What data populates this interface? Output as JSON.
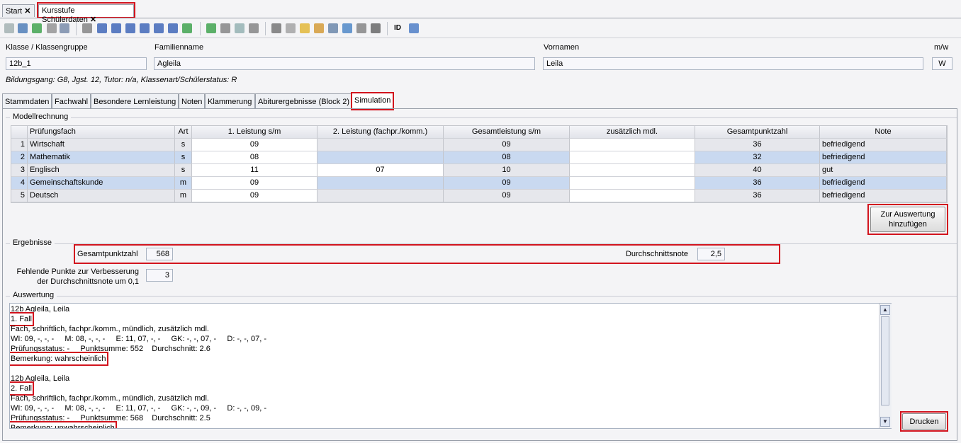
{
  "tabs": [
    "Start",
    "Kursstufe Schülerdaten"
  ],
  "toolbar": {
    "id_button": "ID"
  },
  "header": {
    "klasse": {
      "label": "Klasse / Klassengruppe",
      "value": "12b_1"
    },
    "familienname": {
      "label": "Familienname",
      "value": "Agleila"
    },
    "vornamen": {
      "label": "Vornamen",
      "value": "Leila"
    },
    "geschlecht": {
      "label": "m/w",
      "value": "W"
    },
    "info": "Bildungsgang: G8, Jgst. 12, Tutor: n/a, Klassenart/Schülerstatus: R"
  },
  "subtabs": [
    "Stammdaten",
    "Fachwahl",
    "Besondere Lernleistung",
    "Noten",
    "Klammerung",
    "Abiturergebnisse (Block 2)",
    "Simulation"
  ],
  "modellrechnung": {
    "title": "Modellrechnung",
    "columns": [
      null,
      "Prüfungsfach",
      "Art",
      "1. Leistung s/m",
      "2. Leistung (fachpr./komm.)",
      "Gesamtleistung s/m",
      "zusätzlich mdl.",
      "Gesamtpunktzahl",
      "Note"
    ],
    "rows": [
      [
        "1",
        "Wirtschaft",
        "s",
        "09",
        null,
        "09",
        null,
        "36",
        "befriedigend"
      ],
      [
        "2",
        "Mathematik",
        "s",
        "08",
        null,
        "08",
        null,
        "32",
        "befriedigend"
      ],
      [
        "3",
        "Englisch",
        "s",
        "11",
        "07",
        "10",
        null,
        "40",
        "gut"
      ],
      [
        "4",
        "Gemeinschaftskunde",
        "m",
        "09",
        null,
        "09",
        null,
        "36",
        "befriedigend"
      ],
      [
        "5",
        "Deutsch",
        "m",
        "09",
        null,
        "09",
        null,
        "36",
        "befriedigend"
      ]
    ],
    "add_button": "Zur Auswertung hinzufügen"
  },
  "ergebnisse": {
    "title": "Ergebnisse",
    "gesamtpunktzahl": {
      "label": "Gesamtpunktzahl",
      "value": "568"
    },
    "durchschnittsnote": {
      "label": "Durchschnittsnote",
      "value": "2,5"
    },
    "fehlende_punkte": {
      "label": "Fehlende Punkte zur Verbesserung der Durchschnittsnote um 0,1",
      "value": "3"
    }
  },
  "auswertung": {
    "title": "Auswertung",
    "cases": [
      {
        "name": "12b Agleila, Leila",
        "fall": "1. Fall",
        "legend": "Fach, schriftlich, fachpr./komm., mündlich, zusätzlich mdl.",
        "grades": "WI: 09, -, -, -     M: 08, -, -, -     E: 11, 07, -, -     GK: -, -, 07, -     D: -, -, 07, -",
        "status": "Prüfungsstatus: -     Punktsumme: 552    Durchschnitt: 2.6",
        "bemerkung": "Bemerkung: wahrscheinlich"
      },
      {
        "name": "12b Agleila, Leila",
        "fall": "2. Fall",
        "legend": "Fach, schriftlich, fachpr./komm., mündlich, zusätzlich mdl.",
        "grades": "WI: 09, -, -, -     M: 08, -, -, -     E: 11, 07, -, -     GK: -, -, 09, -     D: -, -, 09, -",
        "status": "Prüfungsstatus: -     Punktsumme: 568    Durchschnitt: 2.5",
        "bemerkung": "Bemerkung: unwahrscheinlich"
      }
    ],
    "print_button": "Drucken"
  }
}
